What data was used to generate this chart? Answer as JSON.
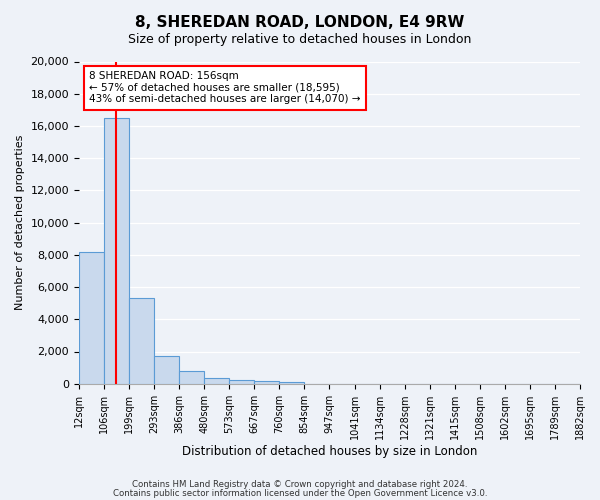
{
  "title": "8, SHEREDAN ROAD, LONDON, E4 9RW",
  "subtitle": "Size of property relative to detached houses in London",
  "xlabel": "Distribution of detached houses by size in London",
  "ylabel": "Number of detached properties",
  "bar_values": [
    8200,
    16500,
    5300,
    1750,
    800,
    350,
    250,
    150,
    100,
    0,
    0,
    0,
    0,
    0,
    0,
    0,
    0,
    0,
    0,
    0
  ],
  "bin_labels": [
    "12sqm",
    "106sqm",
    "199sqm",
    "293sqm",
    "386sqm",
    "480sqm",
    "573sqm",
    "667sqm",
    "760sqm",
    "854sqm",
    "947sqm",
    "1041sqm",
    "1134sqm",
    "1228sqm",
    "1321sqm",
    "1415sqm",
    "1508sqm",
    "1602sqm",
    "1695sqm",
    "1789sqm",
    "1882sqm"
  ],
  "bar_color": "#c9d9ed",
  "bar_edge_color": "#5b9bd5",
  "vline_color": "red",
  "vline_pos": 1.5,
  "annotation_title": "8 SHEREDAN ROAD: 156sqm",
  "annotation_line1": "← 57% of detached houses are smaller (18,595)",
  "annotation_line2": "43% of semi-detached houses are larger (14,070) →",
  "annotation_box_color": "white",
  "annotation_box_edge": "red",
  "ylim": [
    0,
    20000
  ],
  "yticks": [
    0,
    2000,
    4000,
    6000,
    8000,
    10000,
    12000,
    14000,
    16000,
    18000,
    20000
  ],
  "footer1": "Contains HM Land Registry data © Crown copyright and database right 2024.",
  "footer2": "Contains public sector information licensed under the Open Government Licence v3.0.",
  "bg_color": "#eef2f8",
  "plot_bg_color": "#eef2f8",
  "grid_color": "white"
}
